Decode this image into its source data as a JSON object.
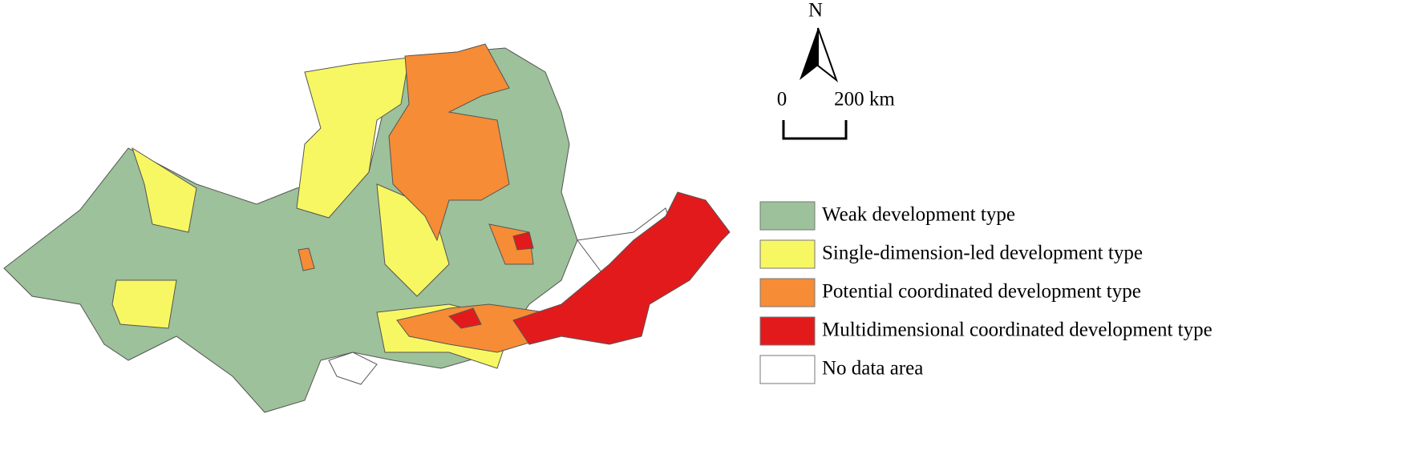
{
  "north_label": "N",
  "scale": {
    "labels": [
      "0",
      "200 km"
    ]
  },
  "legend": {
    "items": [
      {
        "label": "Weak development type",
        "color": "#9dc19a"
      },
      {
        "label": "Single-dimension-led development type",
        "color": "#f7f763"
      },
      {
        "label": "Potential coordinated development type",
        "color": "#f68c35"
      },
      {
        "label": "Multidimensional coordinated development type",
        "color": "#e31a1c"
      },
      {
        "label": "No data area",
        "color": "#ffffff"
      }
    ]
  }
}
